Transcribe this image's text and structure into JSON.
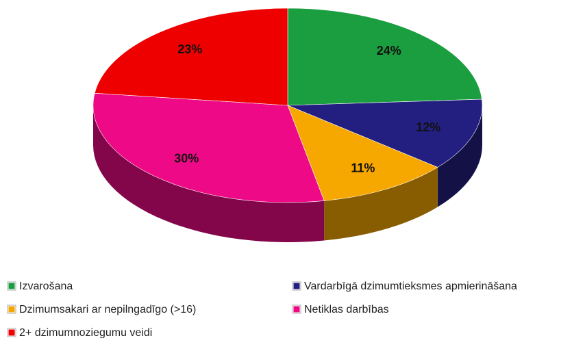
{
  "chart_data": {
    "type": "pie",
    "categories": [
      "Izvarošana",
      "Vardarbīgā dzimumtieksmes apmierināšana",
      "Dzimumsakari ar nepilngadīgo (>16)",
      "Netiklas darbības",
      "2+ dzimumnoziegumu veidi"
    ],
    "values": [
      24,
      12,
      11,
      30,
      23
    ],
    "value_labels": [
      "24%",
      "12%",
      "11%",
      "30%",
      "23%"
    ],
    "colors": [
      "#1a9e3f",
      "#231f80",
      "#f7a800",
      "#ee0a86",
      "#ee0000"
    ],
    "legend": "bottom"
  }
}
